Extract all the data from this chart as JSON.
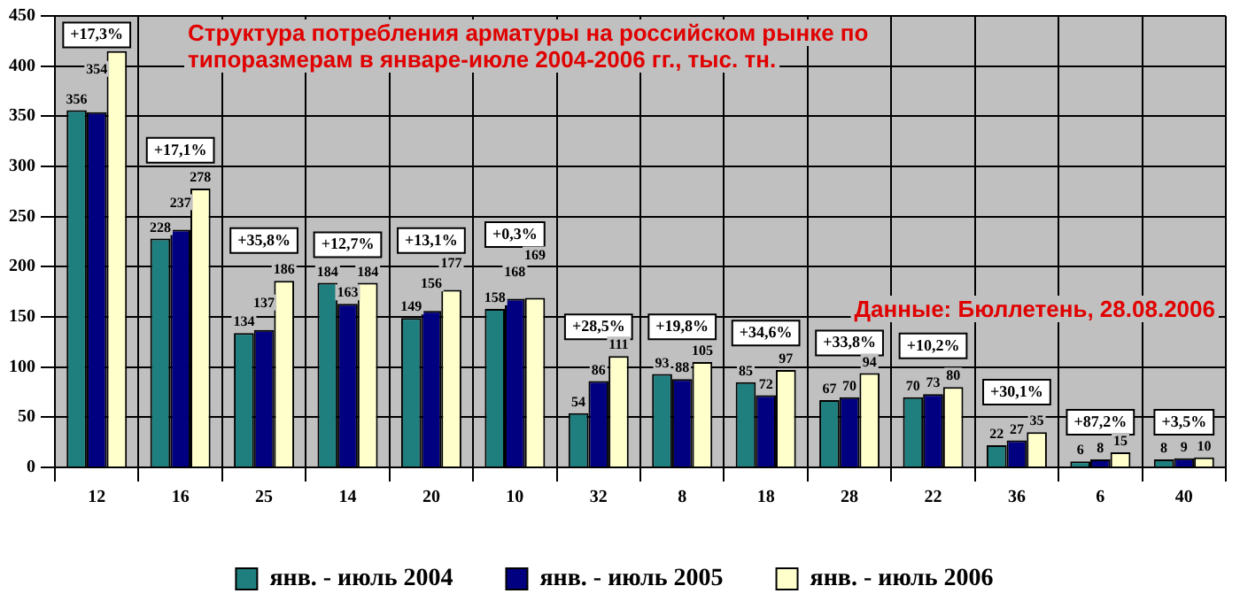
{
  "chart_data": {
    "type": "bar",
    "title": "Структура потребления арматуры на российском рынке по типоразмерам в январе-июле 2004-2006 гг., тыс. тн.",
    "categories": [
      "12",
      "16",
      "25",
      "14",
      "20",
      "10",
      "32",
      "8",
      "18",
      "28",
      "22",
      "36",
      "6",
      "40"
    ],
    "series": [
      {
        "name": "янв. - июль 2004",
        "color": "#1f7f7f",
        "values": [
          356,
          228,
          134,
          184,
          149,
          158,
          54,
          93,
          85,
          67,
          70,
          22,
          6,
          8
        ],
        "value_labels": [
          "356",
          "228",
          "134",
          "184",
          "149",
          "158",
          "54",
          "93",
          "85",
          "67",
          "70",
          "22",
          "6",
          "8"
        ]
      },
      {
        "name": "янв. - июль 2005",
        "color": "#000080",
        "values": [
          354,
          237,
          137,
          163,
          156,
          168,
          86,
          88,
          72,
          70,
          73,
          27,
          8,
          9
        ],
        "value_labels": [
          "354",
          "237",
          "137",
          "163",
          "156",
          "168",
          "86",
          "88",
          "72",
          "70",
          "73",
          "27",
          "8",
          "9"
        ]
      },
      {
        "name": "янв. - июль 2006",
        "color": "#ffffcc",
        "values": [
          415,
          278,
          186,
          184,
          177,
          169,
          111,
          105,
          97,
          94,
          80,
          35,
          15,
          10
        ],
        "value_labels": [
          null,
          "278",
          "186",
          "184",
          "177",
          "169",
          "111",
          "105",
          "97",
          "94",
          "80",
          "35",
          "15",
          "10"
        ]
      }
    ],
    "ylim": [
      0,
      450
    ],
    "yticks": [
      0,
      50,
      100,
      150,
      200,
      250,
      300,
      350,
      400,
      450
    ],
    "grid": true,
    "legend": "bottom",
    "annotations": [
      {
        "text": "+17,3%",
        "x": "12",
        "y": 431
      },
      {
        "text": "+17,1%",
        "x": "16",
        "y": 316
      },
      {
        "text": "+35,8%",
        "x": "25",
        "y": 226
      },
      {
        "text": "+12,7%",
        "x": "14",
        "y": 222
      },
      {
        "text": "+13,1%",
        "x": "20",
        "y": 226
      },
      {
        "text": "+0,3%",
        "x": "10",
        "y": 232
      },
      {
        "text": "+28,5%",
        "x": "32",
        "y": 140
      },
      {
        "text": "+19,8%",
        "x": "8",
        "y": 140
      },
      {
        "text": "+34,6%",
        "x": "18",
        "y": 134
      },
      {
        "text": "+33,8%",
        "x": "28",
        "y": 124
      },
      {
        "text": "+10,2%",
        "x": "22",
        "y": 121
      },
      {
        "text": "+30,1%",
        "x": "36",
        "y": 75
      },
      {
        "text": "+87,2%",
        "x": "6",
        "y": 45
      },
      {
        "text": "+3,5%",
        "x": "40",
        "y": 45
      },
      "Данные: Бюллетень, 28.08.2006"
    ]
  }
}
